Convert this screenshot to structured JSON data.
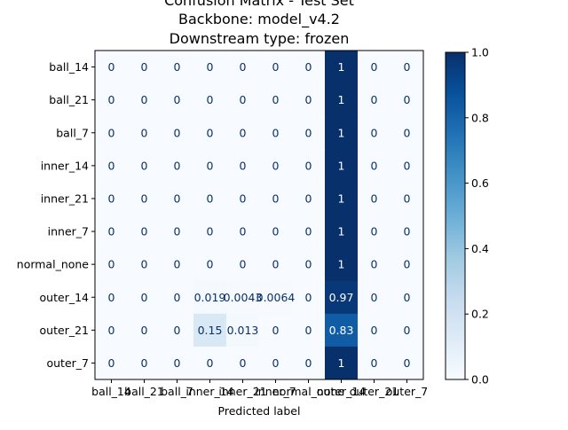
{
  "chart_data": {
    "type": "heatmap",
    "title_lines": [
      "Confusion Matrix - Test Set",
      "Backbone: model_v4.2",
      "Downstream type: frozen"
    ],
    "xlabel": "Predicted label",
    "ylabel": "",
    "row_labels": [
      "ball_14",
      "ball_21",
      "ball_7",
      "inner_14",
      "inner_21",
      "inner_7",
      "normal_none",
      "outer_14",
      "outer_21",
      "outer_7"
    ],
    "col_labels": [
      "ball_14",
      "ball_21",
      "ball_7",
      "inner_14",
      "inner_21",
      "inner_7",
      "normal_none",
      "outer_14",
      "outer_21",
      "outer_7"
    ],
    "values": [
      [
        0,
        0,
        0,
        0,
        0,
        0,
        0,
        1,
        0,
        0
      ],
      [
        0,
        0,
        0,
        0,
        0,
        0,
        0,
        1,
        0,
        0
      ],
      [
        0,
        0,
        0,
        0,
        0,
        0,
        0,
        1,
        0,
        0
      ],
      [
        0,
        0,
        0,
        0,
        0,
        0,
        0,
        1,
        0,
        0
      ],
      [
        0,
        0,
        0,
        0,
        0,
        0,
        0,
        1,
        0,
        0
      ],
      [
        0,
        0,
        0,
        0,
        0,
        0,
        0,
        1,
        0,
        0
      ],
      [
        0,
        0,
        0,
        0,
        0,
        0,
        0,
        1,
        0,
        0
      ],
      [
        0,
        0,
        0,
        0.019,
        0.0043,
        0.0064,
        0,
        0.97,
        0,
        0
      ],
      [
        0,
        0,
        0,
        0.15,
        0.013,
        0,
        0,
        0.83,
        0,
        0
      ],
      [
        0,
        0,
        0,
        0,
        0,
        0,
        0,
        1,
        0,
        0
      ]
    ],
    "cell_text": [
      [
        "0",
        "0",
        "0",
        "0",
        "0",
        "0",
        "0",
        "1",
        "0",
        "0"
      ],
      [
        "0",
        "0",
        "0",
        "0",
        "0",
        "0",
        "0",
        "1",
        "0",
        "0"
      ],
      [
        "0",
        "0",
        "0",
        "0",
        "0",
        "0",
        "0",
        "1",
        "0",
        "0"
      ],
      [
        "0",
        "0",
        "0",
        "0",
        "0",
        "0",
        "0",
        "1",
        "0",
        "0"
      ],
      [
        "0",
        "0",
        "0",
        "0",
        "0",
        "0",
        "0",
        "1",
        "0",
        "0"
      ],
      [
        "0",
        "0",
        "0",
        "0",
        "0",
        "0",
        "0",
        "1",
        "0",
        "0"
      ],
      [
        "0",
        "0",
        "0",
        "0",
        "0",
        "0",
        "0",
        "1",
        "0",
        "0"
      ],
      [
        "0",
        "0",
        "0",
        "0.019",
        "0.0043",
        "0.0064",
        "0",
        "0.97",
        "0",
        "0"
      ],
      [
        "0",
        "0",
        "0",
        "0.15",
        "0.013",
        "0",
        "0",
        "0.83",
        "0",
        "0"
      ],
      [
        "0",
        "0",
        "0",
        "0",
        "0",
        "0",
        "0",
        "1",
        "0",
        "0"
      ]
    ],
    "colorbar": {
      "range": [
        0,
        1
      ],
      "ticks": [
        "0.0",
        "0.2",
        "0.4",
        "0.6",
        "0.8",
        "1.0"
      ],
      "colormap": "Blues",
      "low_color": "#f7fbff",
      "high_color": "#08306b"
    }
  }
}
